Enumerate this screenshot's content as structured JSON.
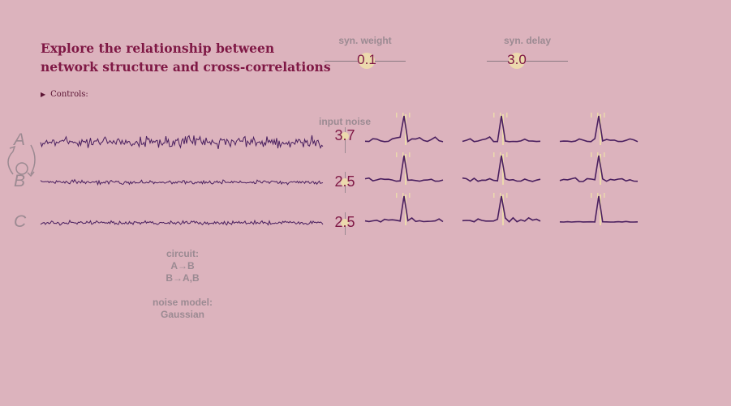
{
  "title": {
    "line1": "Explore the relationship between",
    "line2": "network structure and cross-correlations"
  },
  "sliders": {
    "weight": {
      "label": "syn. weight",
      "value": "0.1"
    },
    "delay": {
      "label": "syn. delay",
      "value": "3.0"
    }
  },
  "controls": {
    "label": "Controls:"
  },
  "nodes": {
    "a": "A",
    "b": "B",
    "c": "C"
  },
  "noise": {
    "title": "input noise",
    "a": "3.7",
    "b": "2.5",
    "c": "2.5"
  },
  "circuit": {
    "label": "circuit:",
    "line1": "A→B",
    "line2": "B→A,B"
  },
  "noise_model": {
    "label": "noise model:",
    "value": "Gaussian"
  },
  "colors": {
    "background": "#dcb3bd",
    "title": "#7f1845",
    "trace": "#4a1f5f",
    "knob": "#ecd9ad",
    "muted": "#9b8a92"
  }
}
